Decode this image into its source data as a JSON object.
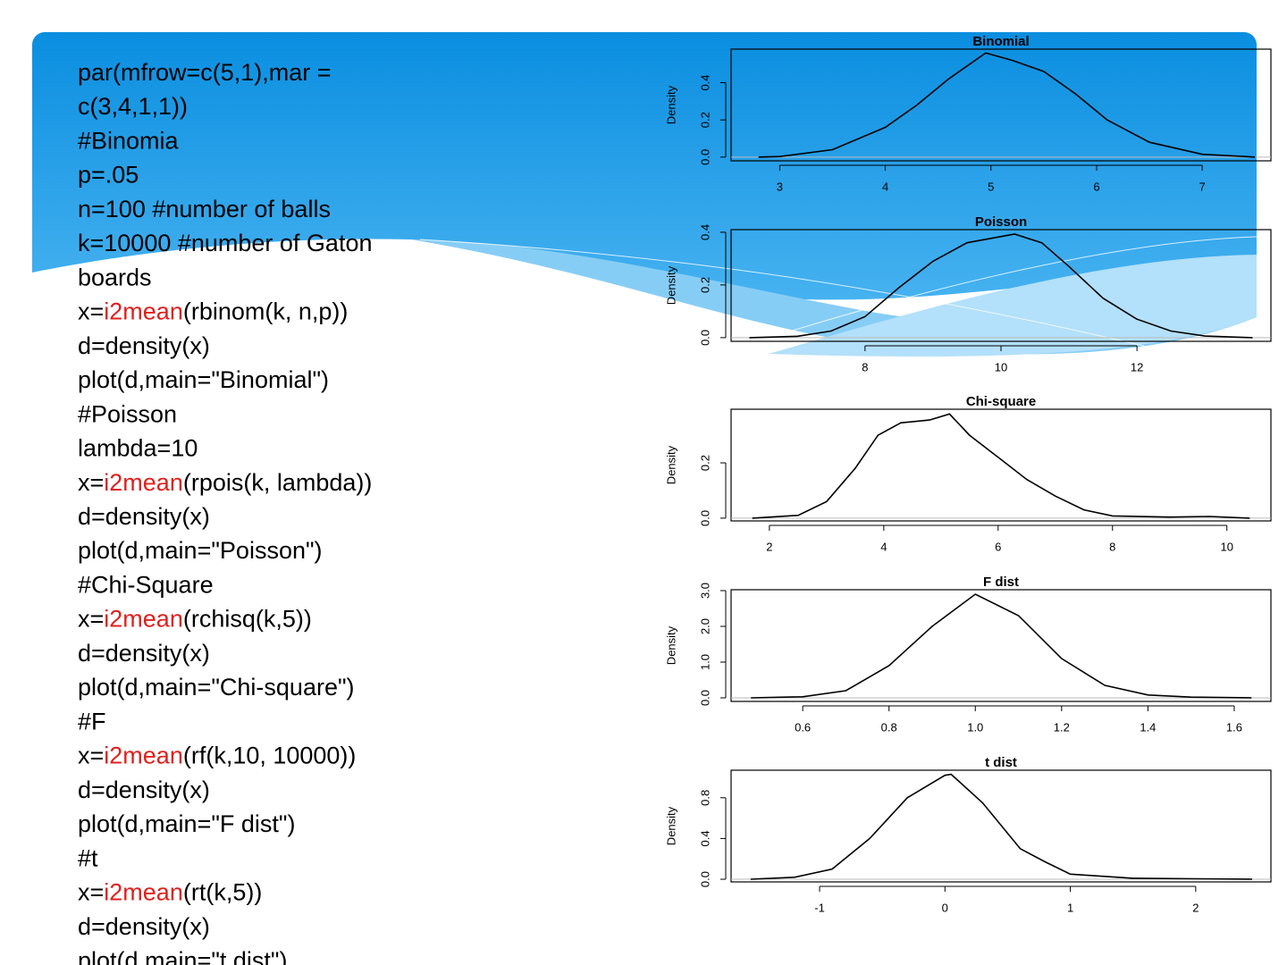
{
  "code": {
    "lines": [
      [
        "par(mfrow=c(5,1),mar ="
      ],
      [
        "c(3,4,1,1))"
      ],
      [
        "#Binomia"
      ],
      [
        "p=.05"
      ],
      [
        "n=100 #number of balls"
      ],
      [
        "k=10000 #number of Gaton"
      ],
      [
        "boards"
      ],
      [
        "x=",
        {
          "text": "i2mean",
          "color": "#e0201c"
        },
        "(rbinom(k, n,p))"
      ],
      [
        "d=density(x)"
      ],
      [
        "plot(d,main=\"Binomial\")"
      ],
      [
        "#Poisson"
      ],
      [
        "lambda=10"
      ],
      [
        "x=",
        {
          "text": "i2mean",
          "color": "#e0201c"
        },
        "(rpois(k, lambda))"
      ],
      [
        "d=density(x)"
      ],
      [
        "plot(d,main=\"Poisson\")"
      ],
      [
        "#Chi-Square"
      ],
      [
        "x=",
        {
          "text": "i2mean",
          "color": "#e0201c"
        },
        "(rchisq(k,5))"
      ],
      [
        "d=density(x)"
      ],
      [
        "plot(d,main=\"Chi-square\")"
      ],
      [
        "#F"
      ],
      [
        "x=",
        {
          "text": "i2mean",
          "color": "#e0201c"
        },
        "(rf(k,10, 10000))"
      ],
      [
        "d=density(x)"
      ],
      [
        "plot(d,main=\"F dist\")"
      ],
      [
        "#t"
      ],
      [
        "x=",
        {
          "text": "i2mean",
          "color": "#e0201c"
        },
        "(rt(k,5))"
      ],
      [
        "d=density(x)"
      ],
      [
        "plot(d,main=\"t dist\")"
      ]
    ]
  },
  "chart_data": [
    {
      "type": "line",
      "title": "Binomial",
      "ylabel": "Density",
      "color": "#000000",
      "zero_line": true,
      "x": [
        2.8,
        3.0,
        3.5,
        4.0,
        4.3,
        4.6,
        4.95,
        5.2,
        5.5,
        5.8,
        6.1,
        6.5,
        7.0,
        7.5
      ],
      "values": [
        0.0,
        0.003,
        0.04,
        0.16,
        0.28,
        0.42,
        0.56,
        0.52,
        0.46,
        0.34,
        0.2,
        0.08,
        0.015,
        0.0
      ],
      "xlim": [
        2.54,
        7.65
      ],
      "ylim": [
        -0.02,
        0.58
      ],
      "xticks": [
        3,
        4,
        5,
        6,
        7
      ],
      "yticks": [
        {
          "value": 0,
          "label": "0.0"
        },
        0.2,
        0.4
      ]
    },
    {
      "type": "line",
      "title": "Poisson",
      "ylabel": "Density",
      "color": "#000000",
      "zero_line": true,
      "x": [
        6.3,
        7,
        7.5,
        8,
        8.5,
        9,
        9.5,
        10.2,
        10.6,
        11,
        11.5,
        12,
        12.5,
        13,
        13.7
      ],
      "values": [
        0.0,
        0.005,
        0.025,
        0.08,
        0.19,
        0.29,
        0.36,
        0.393,
        0.36,
        0.27,
        0.15,
        0.07,
        0.025,
        0.006,
        0.0
      ],
      "xlim": [
        6.03,
        13.97
      ],
      "ylim": [
        -0.014,
        0.41
      ],
      "xticks": [
        8,
        10,
        12
      ],
      "yticks": [
        {
          "value": 0,
          "label": "0.0"
        },
        0.2,
        0.4
      ]
    },
    {
      "type": "line",
      "title": "Chi-square",
      "ylabel": "Density",
      "color": "#000000",
      "zero_line": true,
      "x": [
        1.7,
        2.5,
        3,
        3.5,
        3.9,
        4.3,
        4.8,
        5.15,
        5.5,
        6,
        6.5,
        7,
        7.5,
        8,
        9,
        9.7,
        10.4
      ],
      "values": [
        0.0,
        0.01,
        0.06,
        0.18,
        0.3,
        0.345,
        0.355,
        0.377,
        0.3,
        0.22,
        0.14,
        0.08,
        0.03,
        0.008,
        0.004,
        0.006,
        0.0
      ],
      "xlim": [
        1.33,
        10.77
      ],
      "ylim": [
        -0.01,
        0.394
      ],
      "xticks": [
        2,
        4,
        6,
        8,
        10
      ],
      "yticks": [
        {
          "value": 0,
          "label": "0.0"
        },
        0.2
      ]
    },
    {
      "type": "line",
      "title": "F dist",
      "ylabel": "Density",
      "color": "#000000",
      "zero_line": true,
      "x": [
        0.48,
        0.6,
        0.7,
        0.8,
        0.9,
        1.0,
        1.1,
        1.2,
        1.3,
        1.4,
        1.5,
        1.64
      ],
      "values": [
        0.0,
        0.03,
        0.2,
        0.9,
        2.0,
        2.9,
        2.3,
        1.1,
        0.35,
        0.08,
        0.02,
        0.0
      ],
      "xlim": [
        0.434,
        1.685
      ],
      "ylim": [
        -0.1,
        3.025
      ],
      "xticks": [
        0.6,
        0.8,
        {
          "value": 1,
          "label": "1.0"
        },
        1.2,
        1.4,
        1.6
      ],
      "yticks": [
        {
          "value": 0,
          "label": "0.0"
        },
        {
          "value": 1,
          "label": "1.0"
        },
        {
          "value": 2,
          "label": "2.0"
        },
        {
          "value": 3,
          "label": "3.0"
        }
      ]
    },
    {
      "type": "line",
      "title": "t dist",
      "ylabel": "Density",
      "color": "#000000",
      "zero_line": true,
      "x": [
        -1.55,
        -1.2,
        -0.9,
        -0.6,
        -0.3,
        0,
        0.05,
        0.3,
        0.6,
        0.8,
        1.0,
        1.5,
        2.0,
        2.45
      ],
      "values": [
        0.0,
        0.02,
        0.1,
        0.4,
        0.8,
        1.02,
        1.03,
        0.75,
        0.3,
        0.17,
        0.05,
        0.01,
        0.005,
        0.0
      ],
      "xlim": [
        -1.706,
        2.6
      ],
      "ylim": [
        -0.026,
        1.07
      ],
      "xticks": [
        -1,
        0,
        1,
        2
      ],
      "yticks": [
        {
          "value": 0,
          "label": "0.0"
        },
        0.4,
        0.8
      ]
    }
  ]
}
